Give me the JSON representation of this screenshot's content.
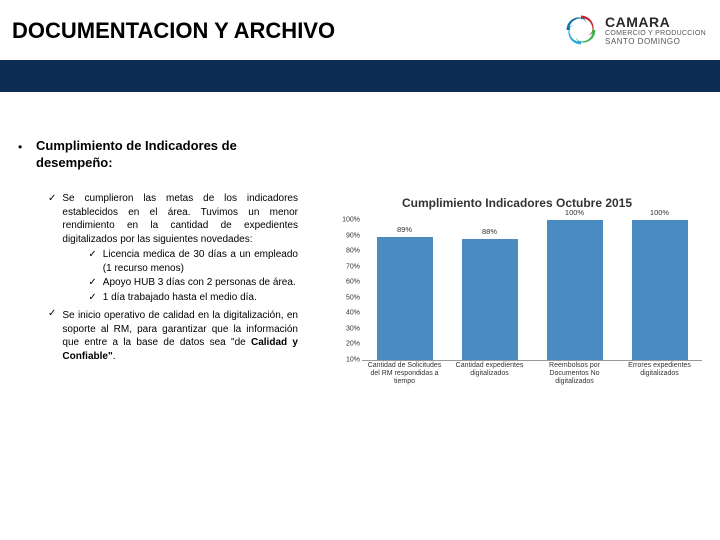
{
  "header": {
    "title": "DOCUMENTACION Y ARCHIVO",
    "logo_main": "CAMARA",
    "logo_sub": "COMERCIO Y PRODUCCION",
    "logo_city": "SANTO DOMINGO"
  },
  "body": {
    "heading": "Cumplimiento de Indicadores de desempeño:",
    "para1": "Se cumplieron las metas de los indicadores establecidos en el área. Tuvimos un menor rendimiento en la cantidad de expedientes digitalizados por las siguientes novedades:",
    "sub1": "Licencia medica de 30 días a un empleado (1 recurso menos)",
    "sub2": "Apoyo HUB 3 días con 2 personas de área.",
    "sub3": "1 día trabajado hasta el medio día.",
    "para2_a": "Se inicio operativo de calidad en la digitalización, en soporte al RM, para garantizar que la información que entre a la base de datos sea \"de ",
    "para2_b": "Calidad y Confiable\"",
    "para2_c": "."
  },
  "chart": {
    "title": "Cumplimiento Indicadores Octubre 2015",
    "type": "bar",
    "y_min": 10,
    "y_max": 100,
    "y_ticks": [
      "100%",
      "90%",
      "80%",
      "70%",
      "60%",
      "50%",
      "40%",
      "30%",
      "20%",
      "10%"
    ],
    "categories": [
      "Cantidad de Solicitudes del RM respondidas a tiempo",
      "Cantidad expedientes digitalizados",
      "Reembolsos por Documentos No digitalizados",
      "Errores expedientes digitalizados"
    ],
    "values": [
      89,
      88,
      100,
      100
    ],
    "labels": [
      "89%",
      "88%",
      "100%",
      "100%"
    ],
    "bar_color": "#4a8cc2",
    "background_color": "#ffffff",
    "grid_color": "#999999",
    "baseline_y": 10,
    "tick_fontsize": 7
  },
  "colors": {
    "band": "#0d2c54",
    "logo_red": "#c1272d",
    "logo_blue": "#1b6fa8",
    "logo_cyan": "#29abe2",
    "logo_green": "#39b54a"
  }
}
